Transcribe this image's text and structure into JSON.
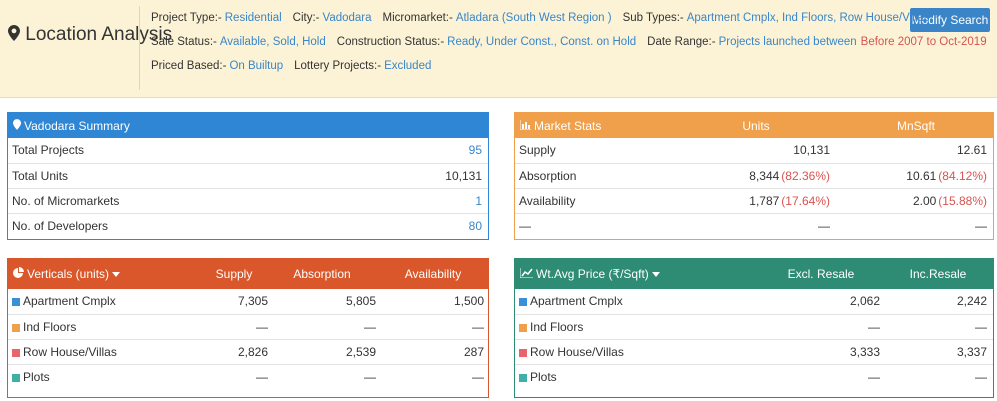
{
  "header": {
    "title": "Location Analysis",
    "button": "Modify Search",
    "filters": [
      [
        {
          "label": "Project Type:-",
          "value": "Residential"
        },
        {
          "label": "City:-",
          "value": "Vadodara"
        },
        {
          "label": "Micromarket:-",
          "value": "Atladara (South West Region )"
        },
        {
          "label": "Sub Types:-",
          "value": "Apartment Cmplx, Ind Floors, Row House/Villas"
        }
      ],
      [
        {
          "label": "Sale Status:-",
          "value": "Available, Sold, Hold"
        },
        {
          "label": "Construction Status:-",
          "value": "Ready, Under Const., Const. on Hold"
        },
        {
          "label": "Date Range:-",
          "value": "Projects launched between",
          "highlight": "Before 2007 to Oct-2019"
        }
      ],
      [
        {
          "label": "Priced Based:-",
          "value": "On Builtup"
        },
        {
          "label": "Lottery Projects:-",
          "value": "Excluded"
        }
      ]
    ]
  },
  "summary": {
    "title": "Vadodara Summary",
    "rows": [
      {
        "label": "Total Projects",
        "value": "95"
      },
      {
        "label": "Total Units",
        "value": "10,131"
      },
      {
        "label": "No. of Micromarkets",
        "value": "1"
      },
      {
        "label": "No. of Developers",
        "value": "80"
      }
    ]
  },
  "market_stats": {
    "title": "Market Stats",
    "columns": [
      "Units",
      "MnSqft"
    ],
    "rows": [
      {
        "label": "Supply",
        "cells": [
          {
            "text": "10,131"
          },
          {
            "text": "12.61"
          }
        ]
      },
      {
        "label": "Absorption",
        "cells": [
          {
            "text": "8,344",
            "note": "(82.36%)"
          },
          {
            "text": "10.61",
            "note": "(84.12%)"
          }
        ]
      },
      {
        "label": "Availability",
        "cells": [
          {
            "text": "1,787",
            "note": "(17.64%)"
          },
          {
            "text": "2.00",
            "note": "(15.88%)"
          }
        ]
      },
      {
        "label": "—",
        "cells": [
          {
            "text": "—"
          },
          {
            "text": "—"
          }
        ]
      }
    ]
  },
  "verticals": {
    "title": "Verticals (units)",
    "columns": [
      "Supply",
      "Absorption",
      "Availability"
    ],
    "rows": [
      {
        "label": "Apartment Cmplx",
        "color": "#3a8fd9",
        "cells": [
          "7,305",
          "5,805",
          "1,500"
        ]
      },
      {
        "label": "Ind Floors",
        "color": "#f0a04b",
        "cells": [
          "—",
          "—",
          "—"
        ]
      },
      {
        "label": "Row House/Villas",
        "color": "#e8636b",
        "cells": [
          "2,826",
          "2,539",
          "287"
        ]
      },
      {
        "label": "Plots",
        "color": "#3fb0a8",
        "cells": [
          "—",
          "—",
          "—"
        ]
      }
    ]
  },
  "price": {
    "title": "Wt.Avg Price (₹/Sqft)",
    "columns": [
      "Excl. Resale",
      "Inc.Resale"
    ],
    "rows": [
      {
        "label": "Apartment Cmplx",
        "color": "#3a8fd9",
        "cells": [
          "2,062",
          "2,242"
        ]
      },
      {
        "label": "Ind Floors",
        "color": "#f0a04b",
        "cells": [
          "—",
          "—"
        ]
      },
      {
        "label": "Row House/Villas",
        "color": "#e8636b",
        "cells": [
          "3,333",
          "3,337"
        ]
      },
      {
        "label": "Plots",
        "color": "#3fb0a8",
        "cells": [
          "—",
          "—"
        ]
      }
    ]
  }
}
